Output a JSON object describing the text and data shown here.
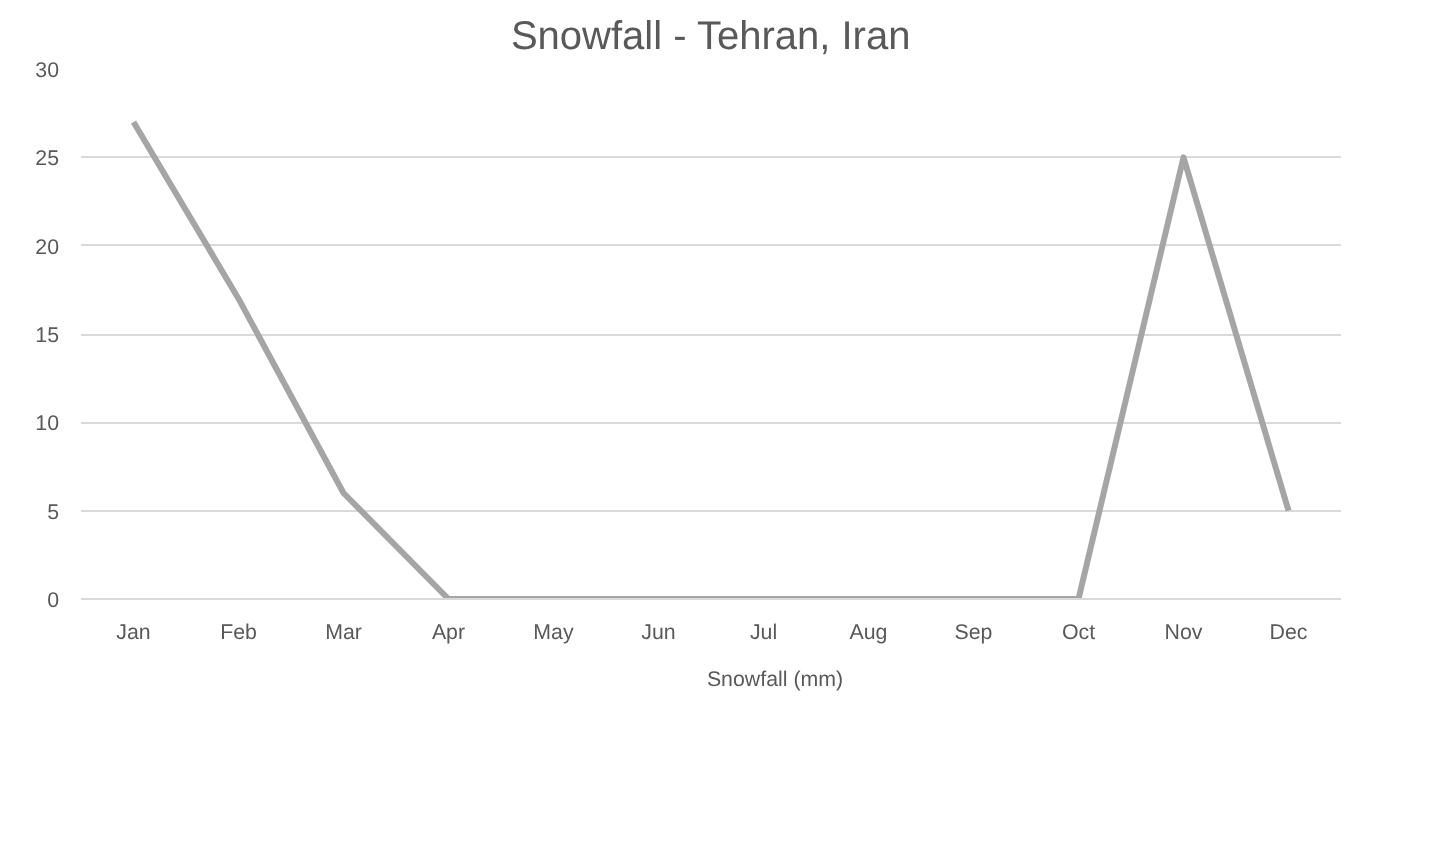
{
  "chart_data": {
    "type": "line",
    "title": "Snowfall - Tehran, Iran",
    "categories": [
      "Jan",
      "Feb",
      "Mar",
      "Apr",
      "May",
      "Jun",
      "Jul",
      "Aug",
      "Sep",
      "Oct",
      "Nov",
      "Dec"
    ],
    "series": [
      {
        "name": "Snowfall (mm)",
        "color": "#a5a5a5",
        "values": [
          27,
          17,
          6,
          0,
          0,
          0,
          0,
          0,
          0,
          0,
          25,
          5
        ]
      }
    ],
    "ylim": [
      0,
      30
    ],
    "yticks": [
      0,
      5,
      10,
      15,
      20,
      25,
      30
    ],
    "grid": "y",
    "legend": "bottom",
    "marker": "none",
    "line_style": "solid"
  }
}
